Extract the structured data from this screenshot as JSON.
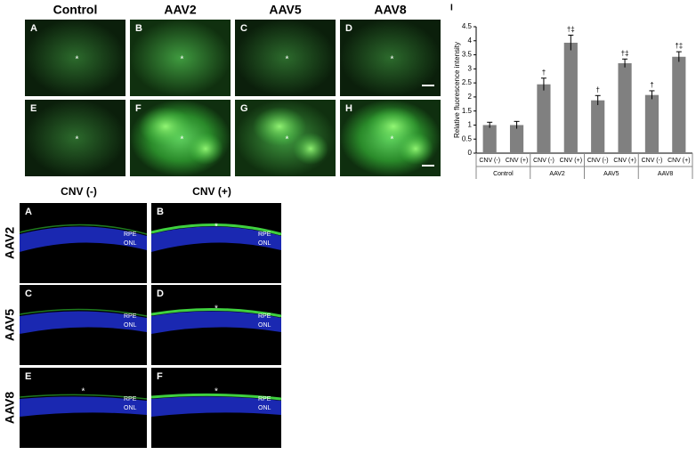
{
  "top_panels": {
    "column_headers": [
      "Control",
      "AAV2",
      "AAV5",
      "AAV8"
    ],
    "panel_letters": [
      "A",
      "B",
      "C",
      "D",
      "E",
      "F",
      "G",
      "H"
    ],
    "asterisk": "*"
  },
  "bottom_panels": {
    "column_headers": [
      "CNV (-)",
      "CNV (+)"
    ],
    "row_labels": [
      "AAV2",
      "AAV5",
      "AAV8"
    ],
    "panel_letters": [
      "A",
      "B",
      "C",
      "D",
      "E",
      "F"
    ],
    "layer_labels": [
      "RPE",
      "ONL"
    ],
    "asterisk": "*"
  },
  "chart_data": {
    "type": "bar",
    "panel_letter": "I",
    "y_label": "Relative fluorescence intensity",
    "categories": [
      "CNV (-)",
      "CNV (+)",
      "CNV (-)",
      "CNV (+)",
      "CNV (-)",
      "CNV (+)",
      "CNV (-)",
      "CNV (+)"
    ],
    "groups": [
      "Control",
      "AAV2",
      "AAV5",
      "AAV8"
    ],
    "values": [
      1.0,
      1.0,
      2.45,
      3.93,
      1.88,
      3.2,
      2.07,
      3.43
    ],
    "errors": [
      0.1,
      0.13,
      0.22,
      0.27,
      0.17,
      0.15,
      0.15,
      0.18
    ],
    "annotations": [
      null,
      null,
      "†",
      "†‡",
      "†",
      "†‡",
      "†",
      "†‡"
    ],
    "color": "#808080",
    "ylim": [
      0,
      4.5
    ],
    "yticks": [
      0,
      0.5,
      1,
      1.5,
      2,
      2.5,
      3,
      3.5,
      4,
      4.5
    ]
  }
}
